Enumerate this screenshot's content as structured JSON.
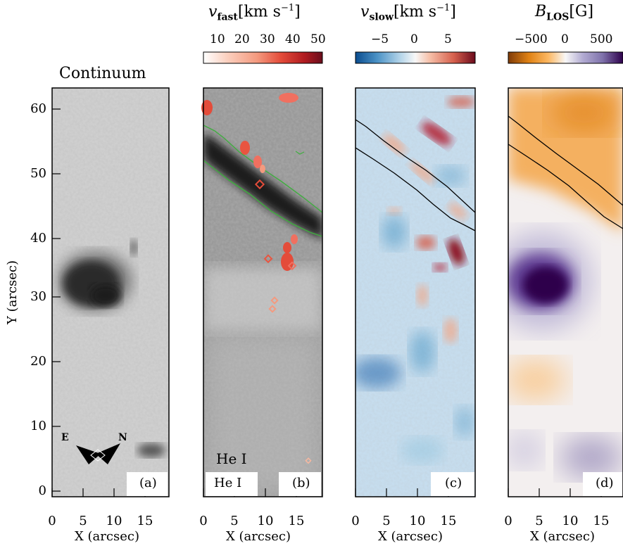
{
  "panels": [
    {
      "id": "a",
      "title": "Continuum",
      "label": "(a)",
      "extra_label": ""
    },
    {
      "id": "b",
      "title_var": "v",
      "title_sub": "fast",
      "title_unit": "[km s",
      "title_exp": "−1",
      "title_close": "]",
      "label": "(b)",
      "extra_label": "He I",
      "line_label": "He I"
    },
    {
      "id": "c",
      "title_var": "v",
      "title_sub": "slow",
      "title_unit": "[km s",
      "title_exp": "−1",
      "title_close": "]",
      "label": "(c)"
    },
    {
      "id": "d",
      "title_var": "B",
      "title_sub": "LOS",
      "title_unit": "[G]",
      "label": "(d)"
    }
  ],
  "colorbars": {
    "fast": {
      "ticks": [
        "10",
        "20",
        "30",
        "40",
        "50"
      ],
      "range": [
        5,
        52
      ],
      "colors": [
        "#ffffff",
        "#fbd0bf",
        "#f49a7f",
        "#e44c3a",
        "#b01b20",
        "#6a0d1c"
      ]
    },
    "slow": {
      "ticks": [
        "−5",
        "0",
        "5"
      ],
      "range": [
        -9,
        9
      ],
      "colors": [
        "#0b4d8f",
        "#4b92c6",
        "#b7d6ea",
        "#f7f7f7",
        "#f6c0a9",
        "#d6604d",
        "#6b0a1c"
      ]
    },
    "blos": {
      "ticks": [
        "−500",
        "0",
        "500"
      ],
      "range": [
        -800,
        800
      ],
      "colors": [
        "#7f3b08",
        "#e08214",
        "#fdb863",
        "#f7f7f7",
        "#b2abd2",
        "#8073ac",
        "#2d004b"
      ]
    }
  },
  "axes": {
    "ylabel": "Y (arcsec)",
    "xlabel": "X (arcsec)",
    "yticks": [
      "0",
      "10",
      "20",
      "30",
      "40",
      "50",
      "60"
    ],
    "xticks": [
      "0",
      "5",
      "10",
      "15"
    ]
  },
  "compass": {
    "east": "E",
    "north": "N"
  },
  "colors": {
    "contour_green": "#3fae3f",
    "contour_black": "#000000"
  }
}
